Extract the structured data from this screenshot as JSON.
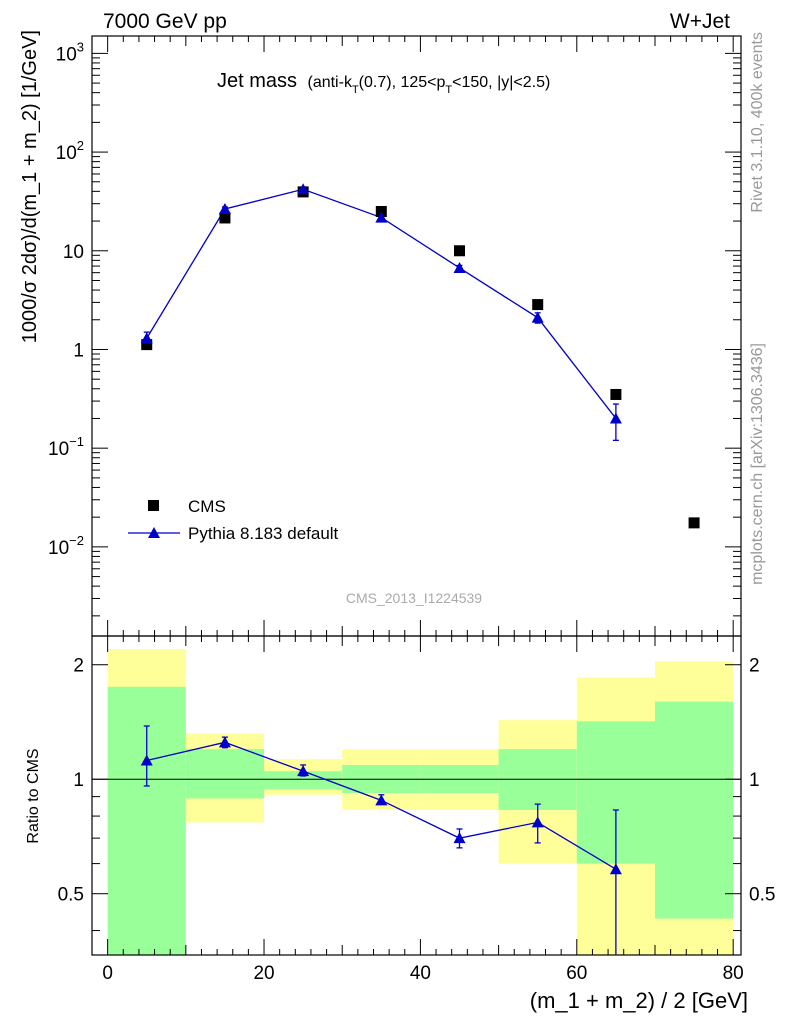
{
  "header": {
    "left": "7000 GeV pp",
    "right": "W+Jet"
  },
  "side_labels": {
    "rivet": "Rivet 3.1.10,  400k events",
    "mcplots": "mcplots.cern.ch [arXiv:1306.3436]"
  },
  "watermark": "CMS_2013_I1224539",
  "colors": {
    "data": "#000000",
    "mc": "#0000cc",
    "band_inner": "#99ff99",
    "band_outer": "#ffff99"
  },
  "chart_data": [
    {
      "type": "scatter",
      "panel": "main",
      "title": "Jet mass",
      "title_detail": {
        "p1": "(anti-k",
        "s1": "T",
        "p2": "(0.7), 125<p",
        "s2": "T",
        "p3": "<150, |y|<2.5)"
      },
      "ylabel": "1000/σ 2dσ)/d(m_1 + m_2) [1/GeV]",
      "y_scale": "log",
      "ylim": [
        0.00125,
        1500
      ],
      "xlim": [
        -2,
        81
      ],
      "y_ticks": [
        {
          "value": 0.01,
          "base": "10",
          "exp": "−2"
        },
        {
          "value": 0.1,
          "base": "10",
          "exp": "−1"
        },
        {
          "value": 1,
          "base": "1",
          "exp": ""
        },
        {
          "value": 10,
          "base": "10",
          "exp": ""
        },
        {
          "value": 100,
          "base": "10",
          "exp": "2"
        },
        {
          "value": 1000,
          "base": "10",
          "exp": "3"
        }
      ],
      "legend": {
        "position": "bottom-left",
        "entries": [
          "CMS",
          "Pythia 8.183 default"
        ]
      },
      "series": [
        {
          "name": "CMS",
          "marker": "square",
          "x": [
            5,
            15,
            25,
            35,
            45,
            55,
            65,
            75
          ],
          "y": [
            1.12,
            21.5,
            39.5,
            25.0,
            10.0,
            2.85,
            0.35,
            0.0175
          ]
        },
        {
          "name": "Pythia 8.183 default",
          "marker": "triangle",
          "line": true,
          "x": [
            5,
            15,
            25,
            35,
            45,
            55,
            65
          ],
          "y": [
            1.3,
            26.5,
            42.0,
            21.7,
            6.7,
            2.1,
            0.2
          ],
          "y_err_low": [
            1.1,
            25.3,
            40.5,
            20.8,
            6.3,
            1.85,
            0.12
          ],
          "y_err_high": [
            1.5,
            27.8,
            43.5,
            22.6,
            7.1,
            2.35,
            0.28
          ]
        }
      ]
    },
    {
      "type": "scatter",
      "panel": "ratio",
      "ylabel": "Ratio to CMS",
      "xlabel": "(m_1 + m_2) / 2 [GeV]",
      "y_scale": "log",
      "ylim": [
        0.345,
        2.38
      ],
      "xlim": [
        -2,
        81
      ],
      "x_ticks": [
        0,
        20,
        40,
        60,
        80
      ],
      "y_ticks": [
        0.5,
        1,
        2
      ],
      "reference_line": 1,
      "bands": [
        {
          "x0": 0,
          "x1": 10,
          "inner": [
            0.2,
            1.75
          ],
          "outer": [
            0.2,
            2.2
          ]
        },
        {
          "x0": 10,
          "x1": 20,
          "inner": [
            0.89,
            1.2
          ],
          "outer": [
            0.77,
            1.32
          ]
        },
        {
          "x0": 20,
          "x1": 30,
          "inner": [
            0.94,
            1.05
          ],
          "outer": [
            0.91,
            1.13
          ]
        },
        {
          "x0": 30,
          "x1": 40,
          "inner": [
            0.92,
            1.09
          ],
          "outer": [
            0.83,
            1.2
          ]
        },
        {
          "x0": 40,
          "x1": 50,
          "inner": [
            0.92,
            1.09
          ],
          "outer": [
            0.83,
            1.2
          ]
        },
        {
          "x0": 50,
          "x1": 60,
          "inner": [
            0.83,
            1.2
          ],
          "outer": [
            0.6,
            1.43
          ]
        },
        {
          "x0": 60,
          "x1": 70,
          "inner": [
            0.6,
            1.42
          ],
          "outer": [
            0.2,
            1.85
          ]
        },
        {
          "x0": 70,
          "x1": 80,
          "inner": [
            0.43,
            1.6
          ],
          "outer": [
            0.2,
            2.04
          ]
        }
      ],
      "series": [
        {
          "name": "Pythia 8.183 default",
          "marker": "triangle",
          "line": true,
          "x": [
            5,
            15,
            25,
            35,
            45,
            55,
            65
          ],
          "y": [
            1.12,
            1.25,
            1.05,
            0.88,
            0.7,
            0.77,
            0.58
          ],
          "y_err_low": [
            0.96,
            1.21,
            1.02,
            0.86,
            0.66,
            0.68,
            0.3
          ],
          "y_err_high": [
            1.38,
            1.29,
            1.09,
            0.91,
            0.74,
            0.86,
            0.83
          ]
        }
      ]
    }
  ]
}
